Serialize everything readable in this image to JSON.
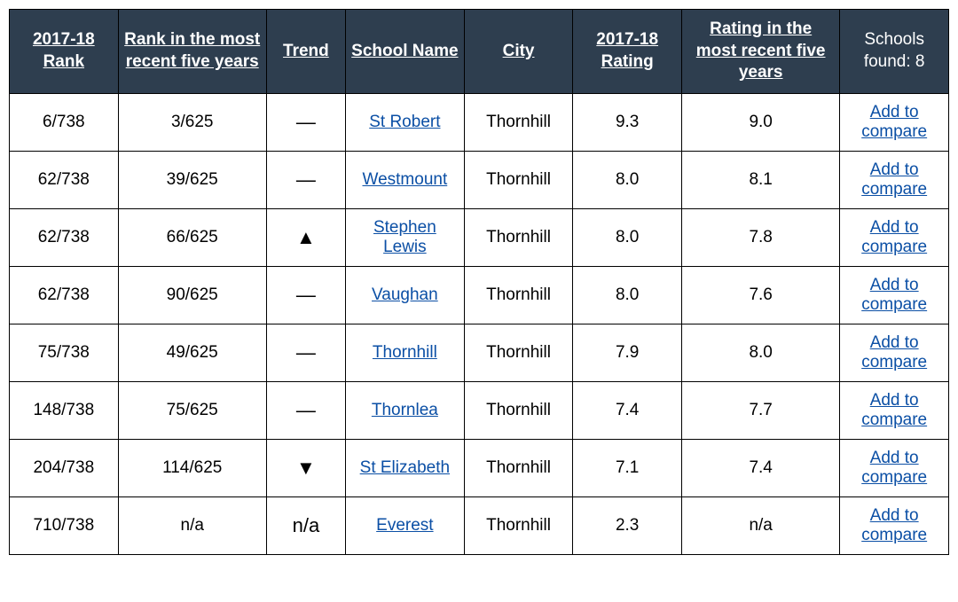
{
  "headers": {
    "rank": "2017-18 Rank",
    "rank_recent": "Rank in the most recent five years",
    "trend": "Trend",
    "school_name": "School Name",
    "city": "City",
    "rating": "2017-18 Rating",
    "rating_recent": "Rating in the most recent five years",
    "schools_found_label": "Schools found:",
    "schools_found_count": "8"
  },
  "trend_glyphs": {
    "dash": "—",
    "up": "▲",
    "down": "▼"
  },
  "compare_label": "Add to compare",
  "colors": {
    "header_bg": "#2e3e4f",
    "header_text": "#ffffff",
    "border": "#000000",
    "link": "#0b4fa5",
    "body_text": "#000000",
    "row_bg": "#ffffff"
  },
  "rows": [
    {
      "rank": "6/738",
      "rank_recent": "3/625",
      "trend": "dash",
      "school": "St Robert",
      "city": "Thornhill",
      "rating": "9.3",
      "rating_recent": "9.0"
    },
    {
      "rank": "62/738",
      "rank_recent": "39/625",
      "trend": "dash",
      "school": "Westmount",
      "city": "Thornhill",
      "rating": "8.0",
      "rating_recent": "8.1"
    },
    {
      "rank": "62/738",
      "rank_recent": "66/625",
      "trend": "up",
      "school": "Stephen Lewis",
      "city": "Thornhill",
      "rating": "8.0",
      "rating_recent": "7.8"
    },
    {
      "rank": "62/738",
      "rank_recent": "90/625",
      "trend": "dash",
      "school": "Vaughan",
      "city": "Thornhill",
      "rating": "8.0",
      "rating_recent": "7.6"
    },
    {
      "rank": "75/738",
      "rank_recent": "49/625",
      "trend": "dash",
      "school": "Thornhill",
      "city": "Thornhill",
      "rating": "7.9",
      "rating_recent": "8.0"
    },
    {
      "rank": "148/738",
      "rank_recent": "75/625",
      "trend": "dash",
      "school": "Thornlea",
      "city": "Thornhill",
      "rating": "7.4",
      "rating_recent": "7.7"
    },
    {
      "rank": "204/738",
      "rank_recent": "114/625",
      "trend": "down",
      "school": "St Elizabeth",
      "city": "Thornhill",
      "rating": "7.1",
      "rating_recent": "7.4"
    },
    {
      "rank": "710/738",
      "rank_recent": "n/a",
      "trend": "na",
      "school": "Everest",
      "city": "Thornhill",
      "rating": "2.3",
      "rating_recent": "n/a"
    }
  ]
}
